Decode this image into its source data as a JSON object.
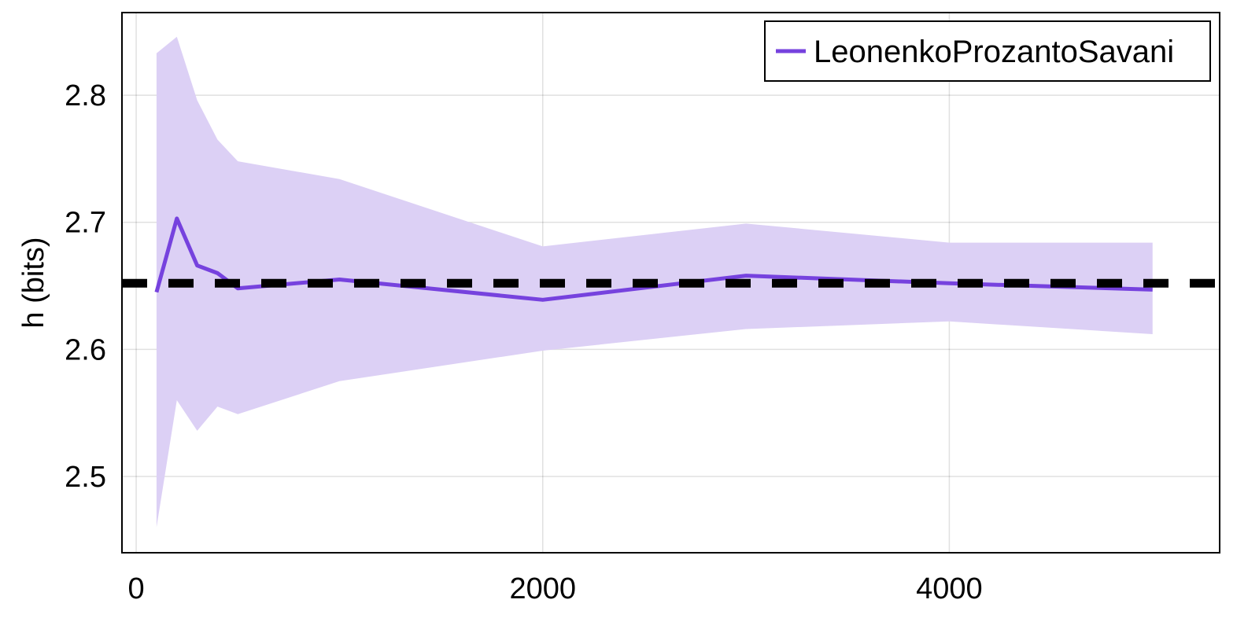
{
  "chart_data": {
    "type": "line",
    "title": "",
    "xlabel": "",
    "ylabel": "h (bits)",
    "xlim": [
      -70,
      5330
    ],
    "ylim": [
      2.44,
      2.865
    ],
    "xticks": [
      0,
      2000,
      4000
    ],
    "xtick_labels": [
      "0",
      "2000",
      "4000"
    ],
    "yticks": [
      2.5,
      2.6,
      2.7,
      2.8
    ],
    "ytick_labels": [
      "2.5",
      "2.6",
      "2.7",
      "2.8"
    ],
    "grid": true,
    "legend_position": "top-right",
    "series": [
      {
        "name": "LeonenkoProzantoSavani",
        "color": "#7642de",
        "band_color": "#dcd0f5",
        "x": [
          100,
          200,
          300,
          400,
          500,
          1000,
          2000,
          3000,
          4000,
          5000
        ],
        "y": [
          2.645,
          2.703,
          2.666,
          2.66,
          2.648,
          2.655,
          2.639,
          2.658,
          2.652,
          2.647
        ],
        "lower": [
          2.46,
          2.56,
          2.536,
          2.555,
          2.549,
          2.575,
          2.599,
          2.616,
          2.622,
          2.612
        ],
        "upper": [
          2.833,
          2.846,
          2.796,
          2.765,
          2.748,
          2.734,
          2.681,
          2.699,
          2.684,
          2.684
        ]
      }
    ],
    "reference_line": {
      "y": 2.652,
      "color": "#000000",
      "style": "dashed"
    }
  }
}
